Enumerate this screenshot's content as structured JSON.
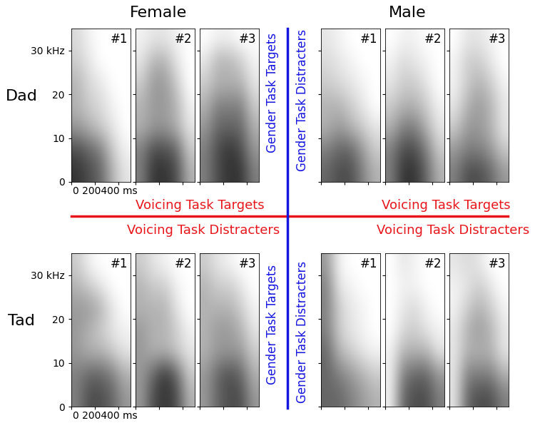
{
  "column_labels": [
    "Female",
    "Male"
  ],
  "row_labels": [
    "Dad",
    "Tad"
  ],
  "time_label": "0 200400 ms",
  "voicing_task": {
    "targets": "Voicing Task Targets",
    "distracters": "Voicing Task Distracters",
    "color": "#e8161b"
  },
  "gender_task": {
    "targets": "Gender Task Targets",
    "distracters": "Gender Task Distracters",
    "color": "#1515e0"
  },
  "chart_data": [
    {
      "type": "heatmap",
      "title": "#1",
      "column": "Female",
      "row": "Dad",
      "tick_labels": "y",
      "xlim": [
        0,
        500
      ],
      "xticks": [
        0,
        200,
        400
      ],
      "ylim": [
        0,
        35
      ],
      "yticks": [
        0,
        10,
        20,
        {
          "value": 30,
          "label": "30 kHz"
        }
      ],
      "cell_range": [
        0,
        1
      ],
      "cells": [
        [
          0.8,
          0.7,
          0.6,
          0.3,
          0.1
        ],
        [
          0.7,
          0.6,
          0.5,
          0.2,
          0.05
        ],
        [
          0.4,
          0.3,
          0.2,
          0.1,
          0
        ],
        [
          0.3,
          0.2,
          0.15,
          0.05,
          0
        ],
        [
          0.3,
          0.15,
          0.1,
          0,
          0
        ],
        [
          0.2,
          0.1,
          0,
          0,
          0
        ],
        [
          0.15,
          0.05,
          0,
          0,
          0
        ]
      ]
    },
    {
      "type": "heatmap",
      "title": "#2",
      "column": "Female",
      "row": "Dad",
      "tick_labels": false,
      "xlim": [
        0,
        500
      ],
      "xticks": [
        0,
        200,
        400
      ],
      "ylim": [
        0,
        35
      ],
      "yticks": [
        0,
        10,
        20,
        30
      ],
      "cell_range": [
        0,
        1
      ],
      "cells": [
        [
          0.5,
          0.8,
          0.8,
          0.7,
          0.3
        ],
        [
          0.5,
          0.7,
          0.7,
          0.6,
          0.2
        ],
        [
          0.3,
          0.4,
          0.4,
          0.3,
          0.1
        ],
        [
          0.3,
          0.4,
          0.4,
          0.3,
          0.05
        ],
        [
          0.2,
          0.4,
          0.4,
          0.2,
          0
        ],
        [
          0.1,
          0.3,
          0.3,
          0.1,
          0
        ],
        [
          0.05,
          0.1,
          0.1,
          0.05,
          0
        ]
      ]
    },
    {
      "type": "heatmap",
      "title": "#3",
      "column": "Female",
      "row": "Dad",
      "tick_labels": false,
      "xlim": [
        0,
        500
      ],
      "xticks": [
        0,
        200,
        400
      ],
      "ylim": [
        0,
        35
      ],
      "yticks": [
        0,
        10,
        20,
        30
      ],
      "cell_range": [
        0,
        1
      ],
      "cells": [
        [
          0.5,
          0.7,
          0.8,
          0.8,
          0.5
        ],
        [
          0.5,
          0.7,
          0.8,
          0.7,
          0.4
        ],
        [
          0.4,
          0.6,
          0.6,
          0.6,
          0.3
        ],
        [
          0.3,
          0.5,
          0.5,
          0.5,
          0.2
        ],
        [
          0.2,
          0.3,
          0.3,
          0.3,
          0.1
        ],
        [
          0.1,
          0.3,
          0.3,
          0.2,
          0.05
        ],
        [
          0,
          0.05,
          0.05,
          0,
          0
        ]
      ]
    },
    {
      "type": "heatmap",
      "title": "#1",
      "column": "Male",
      "row": "Dad",
      "tick_labels": false,
      "xlim": [
        0,
        500
      ],
      "xticks": [
        0,
        200,
        400
      ],
      "ylim": [
        0,
        35
      ],
      "yticks": [
        0,
        10,
        20,
        30
      ],
      "cell_range": [
        0,
        1
      ],
      "cells": [
        [
          0.6,
          0.7,
          0.7,
          0.5,
          0.3
        ],
        [
          0.5,
          0.6,
          0.6,
          0.4,
          0.2
        ],
        [
          0.3,
          0.4,
          0.3,
          0.2,
          0.1
        ],
        [
          0.3,
          0.3,
          0.2,
          0.1,
          0
        ],
        [
          0.2,
          0.15,
          0.1,
          0.05,
          0
        ],
        [
          0.15,
          0.1,
          0.05,
          0,
          0
        ],
        [
          0.1,
          0.05,
          0,
          0,
          0
        ]
      ]
    },
    {
      "type": "heatmap",
      "title": "#2",
      "column": "Male",
      "row": "Dad",
      "tick_labels": false,
      "xlim": [
        0,
        500
      ],
      "xticks": [
        0,
        200,
        400
      ],
      "ylim": [
        0,
        35
      ],
      "yticks": [
        0,
        10,
        20,
        30
      ],
      "cell_range": [
        0,
        1
      ],
      "cells": [
        [
          0.5,
          0.8,
          0.8,
          0.6,
          0.3
        ],
        [
          0.5,
          0.7,
          0.7,
          0.5,
          0.2
        ],
        [
          0.3,
          0.5,
          0.5,
          0.3,
          0.1
        ],
        [
          0.2,
          0.3,
          0.3,
          0.2,
          0.05
        ],
        [
          0.1,
          0.2,
          0.2,
          0.1,
          0
        ],
        [
          0.05,
          0.15,
          0.1,
          0.05,
          0
        ],
        [
          0,
          0.05,
          0.05,
          0,
          0
        ]
      ]
    },
    {
      "type": "heatmap",
      "title": "#3",
      "column": "Male",
      "row": "Dad",
      "tick_labels": false,
      "xlim": [
        0,
        500
      ],
      "xticks": [
        0,
        200,
        400
      ],
      "ylim": [
        0,
        35
      ],
      "yticks": [
        0,
        10,
        20,
        30
      ],
      "cell_range": [
        0,
        1
      ],
      "cells": [
        [
          0.5,
          0.7,
          0.7,
          0.6,
          0.4
        ],
        [
          0.4,
          0.5,
          0.5,
          0.4,
          0.2
        ],
        [
          0.2,
          0.4,
          0.4,
          0.3,
          0.1
        ],
        [
          0.1,
          0.3,
          0.4,
          0.3,
          0.1
        ],
        [
          0.05,
          0.2,
          0.3,
          0.2,
          0.05
        ],
        [
          0.05,
          0.2,
          0.2,
          0.1,
          0
        ],
        [
          0,
          0.1,
          0.1,
          0.05,
          0
        ]
      ]
    },
    {
      "type": "heatmap",
      "title": "#1",
      "column": "Female",
      "row": "Tad",
      "tick_labels": "y",
      "xlim": [
        0,
        500
      ],
      "xticks": [
        0,
        200,
        400
      ],
      "ylim": [
        0,
        35
      ],
      "yticks": [
        0,
        10,
        20,
        {
          "value": 30,
          "label": "30 kHz"
        }
      ],
      "cell_range": [
        0,
        1
      ],
      "cells": [
        [
          0.5,
          0.7,
          0.7,
          0.6,
          0.4
        ],
        [
          0.5,
          0.6,
          0.6,
          0.5,
          0.3
        ],
        [
          0.4,
          0.3,
          0.3,
          0.2,
          0.1
        ],
        [
          0.4,
          0.3,
          0.2,
          0.1,
          0.05
        ],
        [
          0.4,
          0.4,
          0.3,
          0.1,
          0
        ],
        [
          0.3,
          0.2,
          0.1,
          0,
          0
        ],
        [
          0.2,
          0.05,
          0,
          0,
          0
        ]
      ]
    },
    {
      "type": "heatmap",
      "title": "#2",
      "column": "Female",
      "row": "Tad",
      "tick_labels": false,
      "xlim": [
        0,
        500
      ],
      "xticks": [
        0,
        200,
        400
      ],
      "ylim": [
        0,
        35
      ],
      "yticks": [
        0,
        10,
        20,
        30
      ],
      "cell_range": [
        0,
        1
      ],
      "cells": [
        [
          0.4,
          0.7,
          0.8,
          0.7,
          0.3
        ],
        [
          0.4,
          0.6,
          0.8,
          0.6,
          0.2
        ],
        [
          0.4,
          0.3,
          0.3,
          0.2,
          0.1
        ],
        [
          0.4,
          0.3,
          0.3,
          0.2,
          0.05
        ],
        [
          0.3,
          0.3,
          0.3,
          0.1,
          0
        ],
        [
          0.3,
          0.2,
          0.2,
          0.05,
          0
        ],
        [
          0.2,
          0.1,
          0.05,
          0,
          0
        ]
      ]
    },
    {
      "type": "heatmap",
      "title": "#3",
      "column": "Female",
      "row": "Tad",
      "tick_labels": false,
      "xlim": [
        0,
        500
      ],
      "xticks": [
        0,
        200,
        400
      ],
      "ylim": [
        0,
        35
      ],
      "yticks": [
        0,
        10,
        20,
        30
      ],
      "cell_range": [
        0,
        1
      ],
      "cells": [
        [
          0.4,
          0.6,
          0.7,
          0.7,
          0.4
        ],
        [
          0.4,
          0.6,
          0.7,
          0.6,
          0.3
        ],
        [
          0.3,
          0.4,
          0.4,
          0.4,
          0.2
        ],
        [
          0.3,
          0.4,
          0.4,
          0.3,
          0.1
        ],
        [
          0.3,
          0.3,
          0.3,
          0.2,
          0.05
        ],
        [
          0.3,
          0.2,
          0.2,
          0.1,
          0
        ],
        [
          0.2,
          0.1,
          0.05,
          0,
          0
        ]
      ]
    },
    {
      "type": "heatmap",
      "title": "#1",
      "column": "Male",
      "row": "Tad",
      "tick_labels": false,
      "xlim": [
        0,
        500
      ],
      "xticks": [
        0,
        200,
        400
      ],
      "ylim": [
        0,
        35
      ],
      "yticks": [
        0,
        10,
        20,
        30
      ],
      "cell_range": [
        0,
        1
      ],
      "cells": [
        [
          0.6,
          0.6,
          0.5,
          0.4,
          0.3
        ],
        [
          0.6,
          0.5,
          0.4,
          0.3,
          0.2
        ],
        [
          0.6,
          0.3,
          0.2,
          0.1,
          0.05
        ],
        [
          0.5,
          0.2,
          0.1,
          0.05,
          0
        ],
        [
          0.5,
          0.2,
          0.1,
          0.05,
          0
        ],
        [
          0.5,
          0.1,
          0.05,
          0,
          0
        ],
        [
          0.4,
          0.05,
          0,
          0,
          0
        ]
      ]
    },
    {
      "type": "heatmap",
      "title": "#2",
      "column": "Male",
      "row": "Tad",
      "tick_labels": false,
      "xlim": [
        0,
        500
      ],
      "xticks": [
        0,
        200,
        400
      ],
      "ylim": [
        0,
        35
      ],
      "yticks": [
        0,
        10,
        20,
        30
      ],
      "cell_range": [
        0,
        1
      ],
      "cells": [
        [
          0.05,
          0.6,
          0.7,
          0.7,
          0.5
        ],
        [
          0.05,
          0.5,
          0.6,
          0.6,
          0.4
        ],
        [
          0.05,
          0.3,
          0.3,
          0.3,
          0.1
        ],
        [
          0,
          0.15,
          0.2,
          0.1,
          0.05
        ],
        [
          0,
          0.1,
          0.15,
          0.05,
          0
        ],
        [
          0,
          0.05,
          0.05,
          0,
          0
        ],
        [
          0,
          0.1,
          0.05,
          0,
          0
        ]
      ]
    },
    {
      "type": "heatmap",
      "title": "#3",
      "column": "Male",
      "row": "Tad",
      "tick_labels": false,
      "xlim": [
        0,
        500
      ],
      "xticks": [
        0,
        200,
        400
      ],
      "ylim": [
        0,
        35
      ],
      "yticks": [
        0,
        10,
        20,
        30
      ],
      "cell_range": [
        0,
        1
      ],
      "cells": [
        [
          0.1,
          0.6,
          0.7,
          0.7,
          0.5
        ],
        [
          0.1,
          0.5,
          0.5,
          0.5,
          0.3
        ],
        [
          0.1,
          0.3,
          0.3,
          0.3,
          0.1
        ],
        [
          0.1,
          0.3,
          0.4,
          0.3,
          0.1
        ],
        [
          0.05,
          0.2,
          0.3,
          0.2,
          0.05
        ],
        [
          0.05,
          0.1,
          0.2,
          0.1,
          0
        ],
        [
          0.1,
          0.15,
          0.1,
          0,
          0
        ]
      ]
    }
  ]
}
